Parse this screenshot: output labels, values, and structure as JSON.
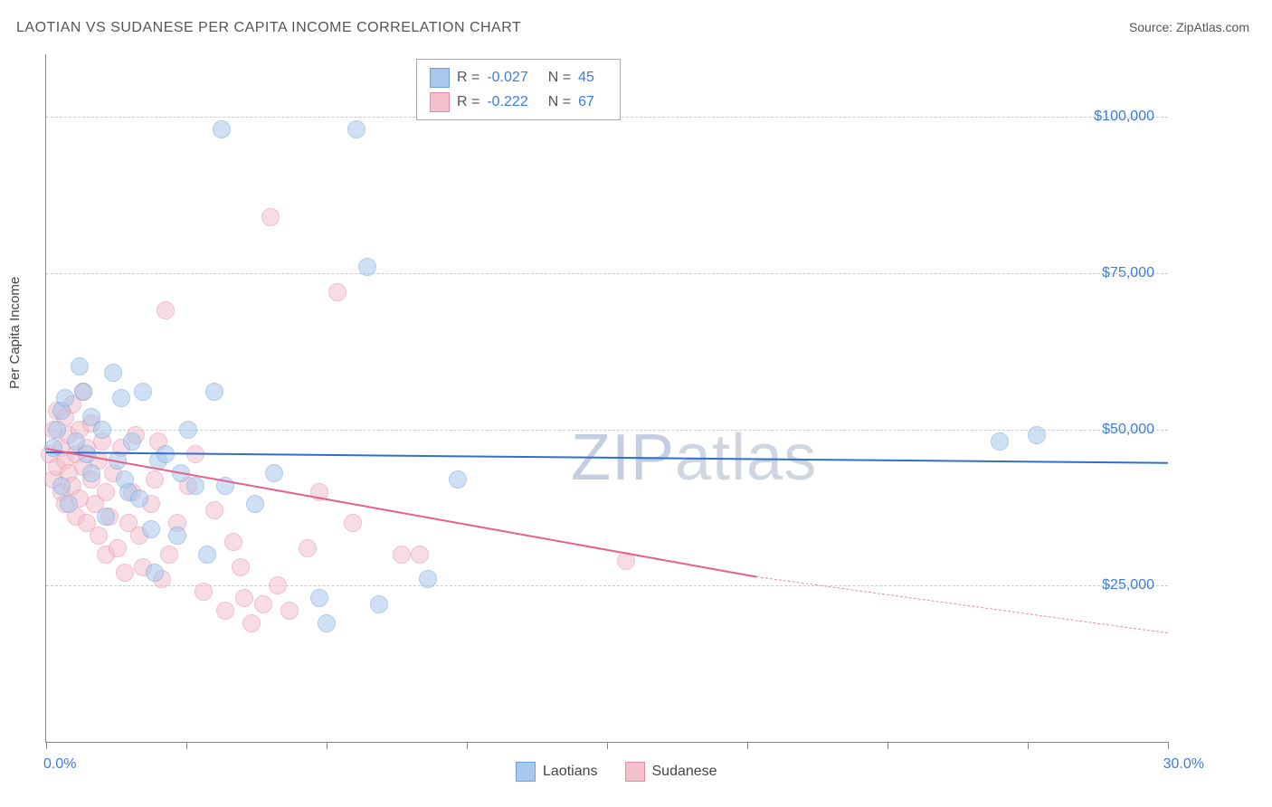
{
  "title": "LAOTIAN VS SUDANESE PER CAPITA INCOME CORRELATION CHART",
  "source_label": "Source:",
  "source_name": "ZipAtlas.com",
  "y_axis_title": "Per Capita Income",
  "watermark": {
    "part1": "ZIP",
    "part2": "atlas"
  },
  "chart": {
    "type": "scatter",
    "xlim": [
      0,
      30
    ],
    "ylim": [
      0,
      110000
    ],
    "x_tick_positions": [
      0,
      3.75,
      7.5,
      11.25,
      15,
      18.75,
      22.5,
      26.25,
      30
    ],
    "x_tick_labels_shown": {
      "first": "0.0%",
      "last": "30.0%"
    },
    "y_gridlines": [
      25000,
      50000,
      75000,
      100000
    ],
    "y_tick_labels": [
      "$25,000",
      "$50,000",
      "$75,000",
      "$100,000"
    ],
    "background_color": "#ffffff",
    "grid_color": "#cccccc",
    "axis_color": "#888888",
    "tick_label_color": "#3b7dd8",
    "point_radius": 9,
    "point_opacity": 0.55,
    "series": [
      {
        "name": "Laotians",
        "fill_color": "#a9c7ec",
        "stroke_color": "#6fa3de",
        "trend_color": "#2f6fd0",
        "R": "-0.027",
        "N": "45",
        "trend": {
          "x1": 0,
          "y1": 46500,
          "x2": 30,
          "y2": 44800
        },
        "dashed_extension": null,
        "points": [
          [
            0.2,
            47000
          ],
          [
            0.3,
            50000
          ],
          [
            0.4,
            53000
          ],
          [
            0.4,
            41000
          ],
          [
            0.5,
            55000
          ],
          [
            0.6,
            38000
          ],
          [
            0.8,
            48000
          ],
          [
            0.9,
            60000
          ],
          [
            1.0,
            56000
          ],
          [
            1.1,
            46000
          ],
          [
            1.2,
            52000
          ],
          [
            1.2,
            43000
          ],
          [
            1.5,
            50000
          ],
          [
            1.6,
            36000
          ],
          [
            1.8,
            59000
          ],
          [
            1.9,
            45000
          ],
          [
            2.0,
            55000
          ],
          [
            2.1,
            42000
          ],
          [
            2.2,
            40000
          ],
          [
            2.3,
            48000
          ],
          [
            2.5,
            39000
          ],
          [
            2.6,
            56000
          ],
          [
            2.8,
            34000
          ],
          [
            2.9,
            27000
          ],
          [
            3.0,
            45000
          ],
          [
            3.2,
            46000
          ],
          [
            3.5,
            33000
          ],
          [
            3.6,
            43000
          ],
          [
            3.8,
            50000
          ],
          [
            4.0,
            41000
          ],
          [
            4.3,
            30000
          ],
          [
            4.5,
            56000
          ],
          [
            4.7,
            98000
          ],
          [
            4.8,
            41000
          ],
          [
            5.6,
            38000
          ],
          [
            6.1,
            43000
          ],
          [
            7.3,
            23000
          ],
          [
            7.5,
            19000
          ],
          [
            8.3,
            98000
          ],
          [
            8.6,
            76000
          ],
          [
            8.9,
            22000
          ],
          [
            10.2,
            26000
          ],
          [
            11.0,
            42000
          ],
          [
            25.5,
            48000
          ],
          [
            26.5,
            49000
          ]
        ]
      },
      {
        "name": "Sudanese",
        "fill_color": "#f4c0cd",
        "stroke_color": "#e88ba5",
        "trend_color": "#e85f8a",
        "R": "-0.222",
        "N": "67",
        "trend": {
          "x1": 0,
          "y1": 47000,
          "x2": 19,
          "y2": 26500
        },
        "dashed_extension": {
          "x1": 19,
          "y1": 26500,
          "x2": 30,
          "y2": 17500
        },
        "points": [
          [
            0.1,
            46000
          ],
          [
            0.2,
            42000
          ],
          [
            0.2,
            50000
          ],
          [
            0.3,
            53000
          ],
          [
            0.3,
            44000
          ],
          [
            0.4,
            47000
          ],
          [
            0.4,
            40000
          ],
          [
            0.5,
            52000
          ],
          [
            0.5,
            45000
          ],
          [
            0.5,
            38000
          ],
          [
            0.6,
            49000
          ],
          [
            0.6,
            43000
          ],
          [
            0.7,
            54000
          ],
          [
            0.7,
            41000
          ],
          [
            0.8,
            46000
          ],
          [
            0.8,
            36000
          ],
          [
            0.9,
            50000
          ],
          [
            0.9,
            39000
          ],
          [
            1.0,
            44000
          ],
          [
            1.0,
            56000
          ],
          [
            1.1,
            47000
          ],
          [
            1.1,
            35000
          ],
          [
            1.2,
            42000
          ],
          [
            1.2,
            51000
          ],
          [
            1.3,
            38000
          ],
          [
            1.4,
            45000
          ],
          [
            1.4,
            33000
          ],
          [
            1.5,
            48000
          ],
          [
            1.6,
            40000
          ],
          [
            1.6,
            30000
          ],
          [
            1.7,
            36000
          ],
          [
            1.8,
            43000
          ],
          [
            1.9,
            31000
          ],
          [
            2.0,
            47000
          ],
          [
            2.1,
            27000
          ],
          [
            2.2,
            35000
          ],
          [
            2.3,
            40000
          ],
          [
            2.4,
            49000
          ],
          [
            2.5,
            33000
          ],
          [
            2.6,
            28000
          ],
          [
            2.8,
            38000
          ],
          [
            2.9,
            42000
          ],
          [
            3.0,
            48000
          ],
          [
            3.1,
            26000
          ],
          [
            3.2,
            69000
          ],
          [
            3.3,
            30000
          ],
          [
            3.5,
            35000
          ],
          [
            3.8,
            41000
          ],
          [
            4.0,
            46000
          ],
          [
            4.2,
            24000
          ],
          [
            4.5,
            37000
          ],
          [
            4.8,
            21000
          ],
          [
            5.0,
            32000
          ],
          [
            5.2,
            28000
          ],
          [
            5.3,
            23000
          ],
          [
            5.5,
            19000
          ],
          [
            5.8,
            22000
          ],
          [
            6.0,
            84000
          ],
          [
            6.2,
            25000
          ],
          [
            6.5,
            21000
          ],
          [
            7.0,
            31000
          ],
          [
            7.3,
            40000
          ],
          [
            7.8,
            72000
          ],
          [
            8.2,
            35000
          ],
          [
            9.5,
            30000
          ],
          [
            10.0,
            30000
          ],
          [
            15.5,
            29000
          ]
        ]
      }
    ]
  },
  "legend": {
    "series1": "Laotians",
    "series2": "Sudanese"
  },
  "stats_box": {
    "r_label": "R =",
    "n_label": "N ="
  }
}
